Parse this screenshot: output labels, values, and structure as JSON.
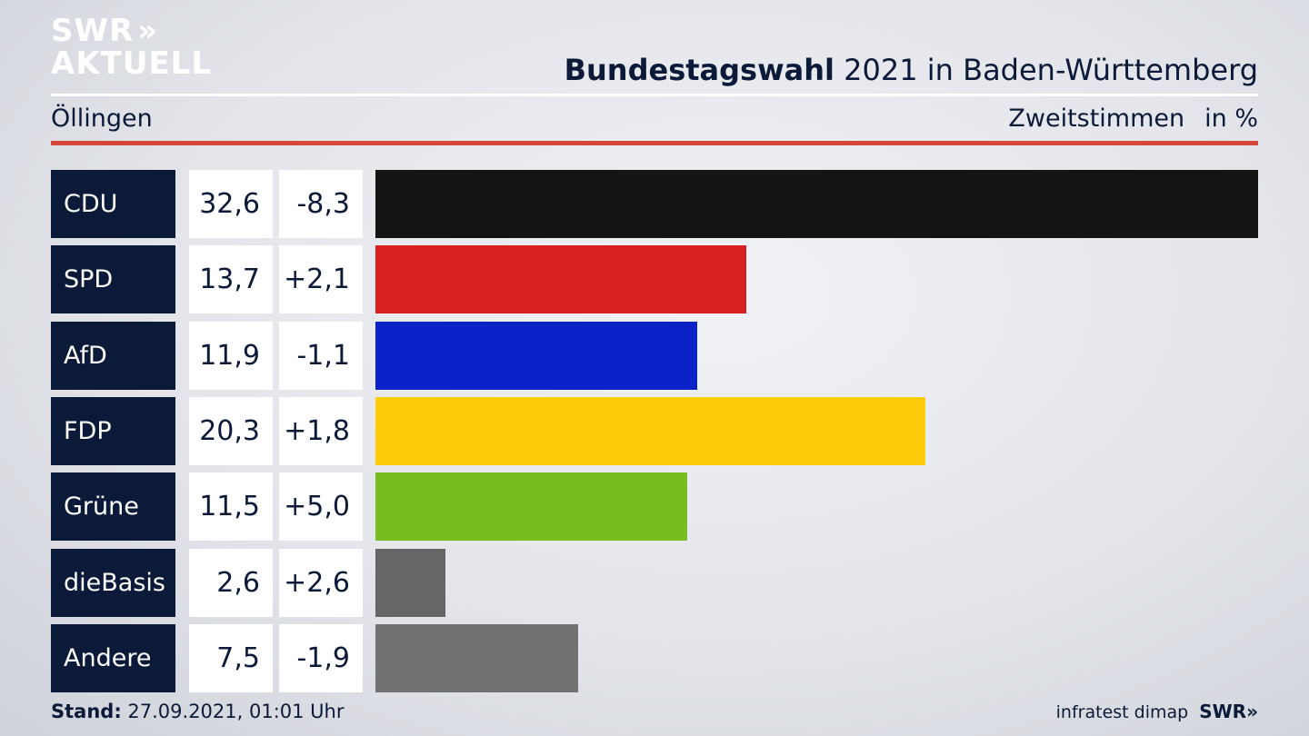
{
  "logo": {
    "line1": "SWR",
    "chevrons": "»",
    "line2": "AKTUELL"
  },
  "header": {
    "title_bold": "Bundestagswahl",
    "title_rest": " 2021 in Baden-Württemberg",
    "location": "Öllingen",
    "vote_type": "Zweitstimmen",
    "unit": "in %"
  },
  "colors": {
    "navy": "#0c1a3a",
    "accent_red_rule": "#d5473a"
  },
  "chart_data": {
    "type": "bar",
    "orientation": "horizontal",
    "categories": [
      "CDU",
      "SPD",
      "AfD",
      "FDP",
      "Grüne",
      "dieBasis",
      "Andere"
    ],
    "values": [
      32.6,
      13.7,
      11.9,
      20.3,
      11.5,
      2.6,
      7.5
    ],
    "value_labels": [
      "32,6",
      "13,7",
      "11,9",
      "20,3",
      "11,5",
      "2,6",
      "7,5"
    ],
    "change_labels": [
      "-8,3",
      "+2,1",
      "-1,1",
      "+1,8",
      "+5,0",
      "+2,6",
      "-1,9"
    ],
    "changes": [
      -8.3,
      2.1,
      -1.1,
      1.8,
      5.0,
      2.6,
      -1.9
    ],
    "bar_colors": [
      "#141414",
      "#d92020",
      "#0a22c8",
      "#fdcc0a",
      "#77bd1f",
      "#666666",
      "#727272"
    ],
    "xlim": [
      0,
      32.6
    ],
    "grid": false,
    "legend": "none"
  },
  "footer": {
    "stand_label": "Stand:",
    "stand_value": " 27.09.2021, 01:01 Uhr",
    "source": "infratest dimap",
    "brand": "SWR»"
  }
}
